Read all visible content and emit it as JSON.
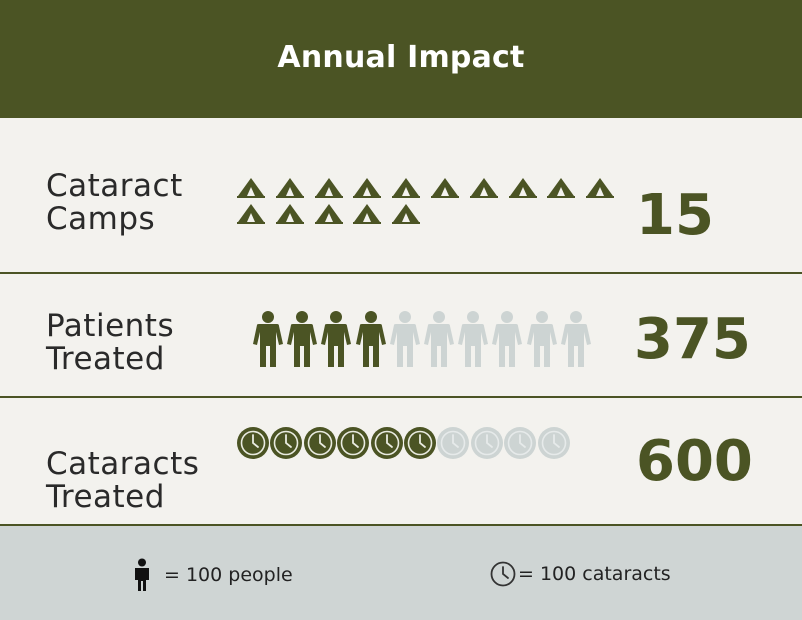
{
  "header": {
    "title": "Annual Impact"
  },
  "rows": [
    {
      "label_line1": "Cataract",
      "label_line2": "Camps",
      "value": "15",
      "icon": "tent-icon",
      "filled": 15,
      "total": 15
    },
    {
      "label_line1": "Patients",
      "label_line2": "Treated",
      "value": "375",
      "icon": "person-icon",
      "filled": 4,
      "total": 10
    },
    {
      "label_line1": "Cataracts",
      "label_line2": "Treated",
      "value": "600",
      "icon": "clock-icon",
      "filled": 6,
      "total": 10
    }
  ],
  "legend": {
    "people_text": "= 100 people",
    "cataracts_text": "= 100 cataracts"
  },
  "colors": {
    "accent": "#4b5424",
    "faded": "#cdd4d3",
    "background": "#f3f2ee",
    "footer": "#cfd5d4"
  }
}
